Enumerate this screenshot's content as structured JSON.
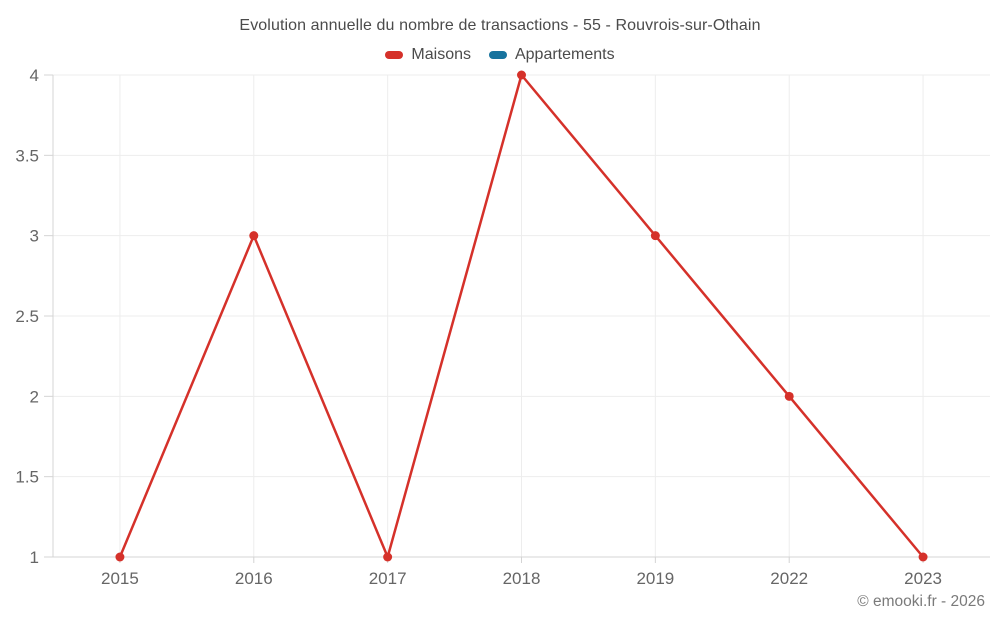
{
  "header": {
    "title": "Evolution annuelle du nombre de transactions - 55 - Rouvrois-sur-Othain"
  },
  "legend": {
    "items": [
      {
        "label": "Maisons",
        "color": "#d5312a"
      },
      {
        "label": "Appartements",
        "color": "#17739e"
      }
    ]
  },
  "footer": {
    "credit": "© emooki.fr - 2026"
  },
  "chart_data": {
    "type": "line",
    "title": "Evolution annuelle du nombre de transactions - 55 - Rouvrois-sur-Othain",
    "categories": [
      "2015",
      "2016",
      "2017",
      "2018",
      "2019",
      "2022",
      "2023"
    ],
    "series": [
      {
        "name": "Maisons",
        "color": "#d5312a",
        "values": [
          1,
          3,
          1,
          4,
          3,
          2,
          1
        ]
      },
      {
        "name": "Appartements",
        "color": "#17739e",
        "values": []
      }
    ],
    "xlabel": "",
    "ylabel": "",
    "ylim": [
      1,
      4
    ],
    "yticks": [
      1,
      1.5,
      2,
      2.5,
      3,
      3.5,
      4
    ],
    "ytick_labels": [
      "1",
      "1.5",
      "2",
      "2.5",
      "3",
      "3.5",
      "4"
    ],
    "grid": true,
    "legend_position": "top",
    "colors": {
      "grid_line": "#ededed",
      "axis_line": "#d4d4d4",
      "tick_label": "#666666"
    }
  }
}
